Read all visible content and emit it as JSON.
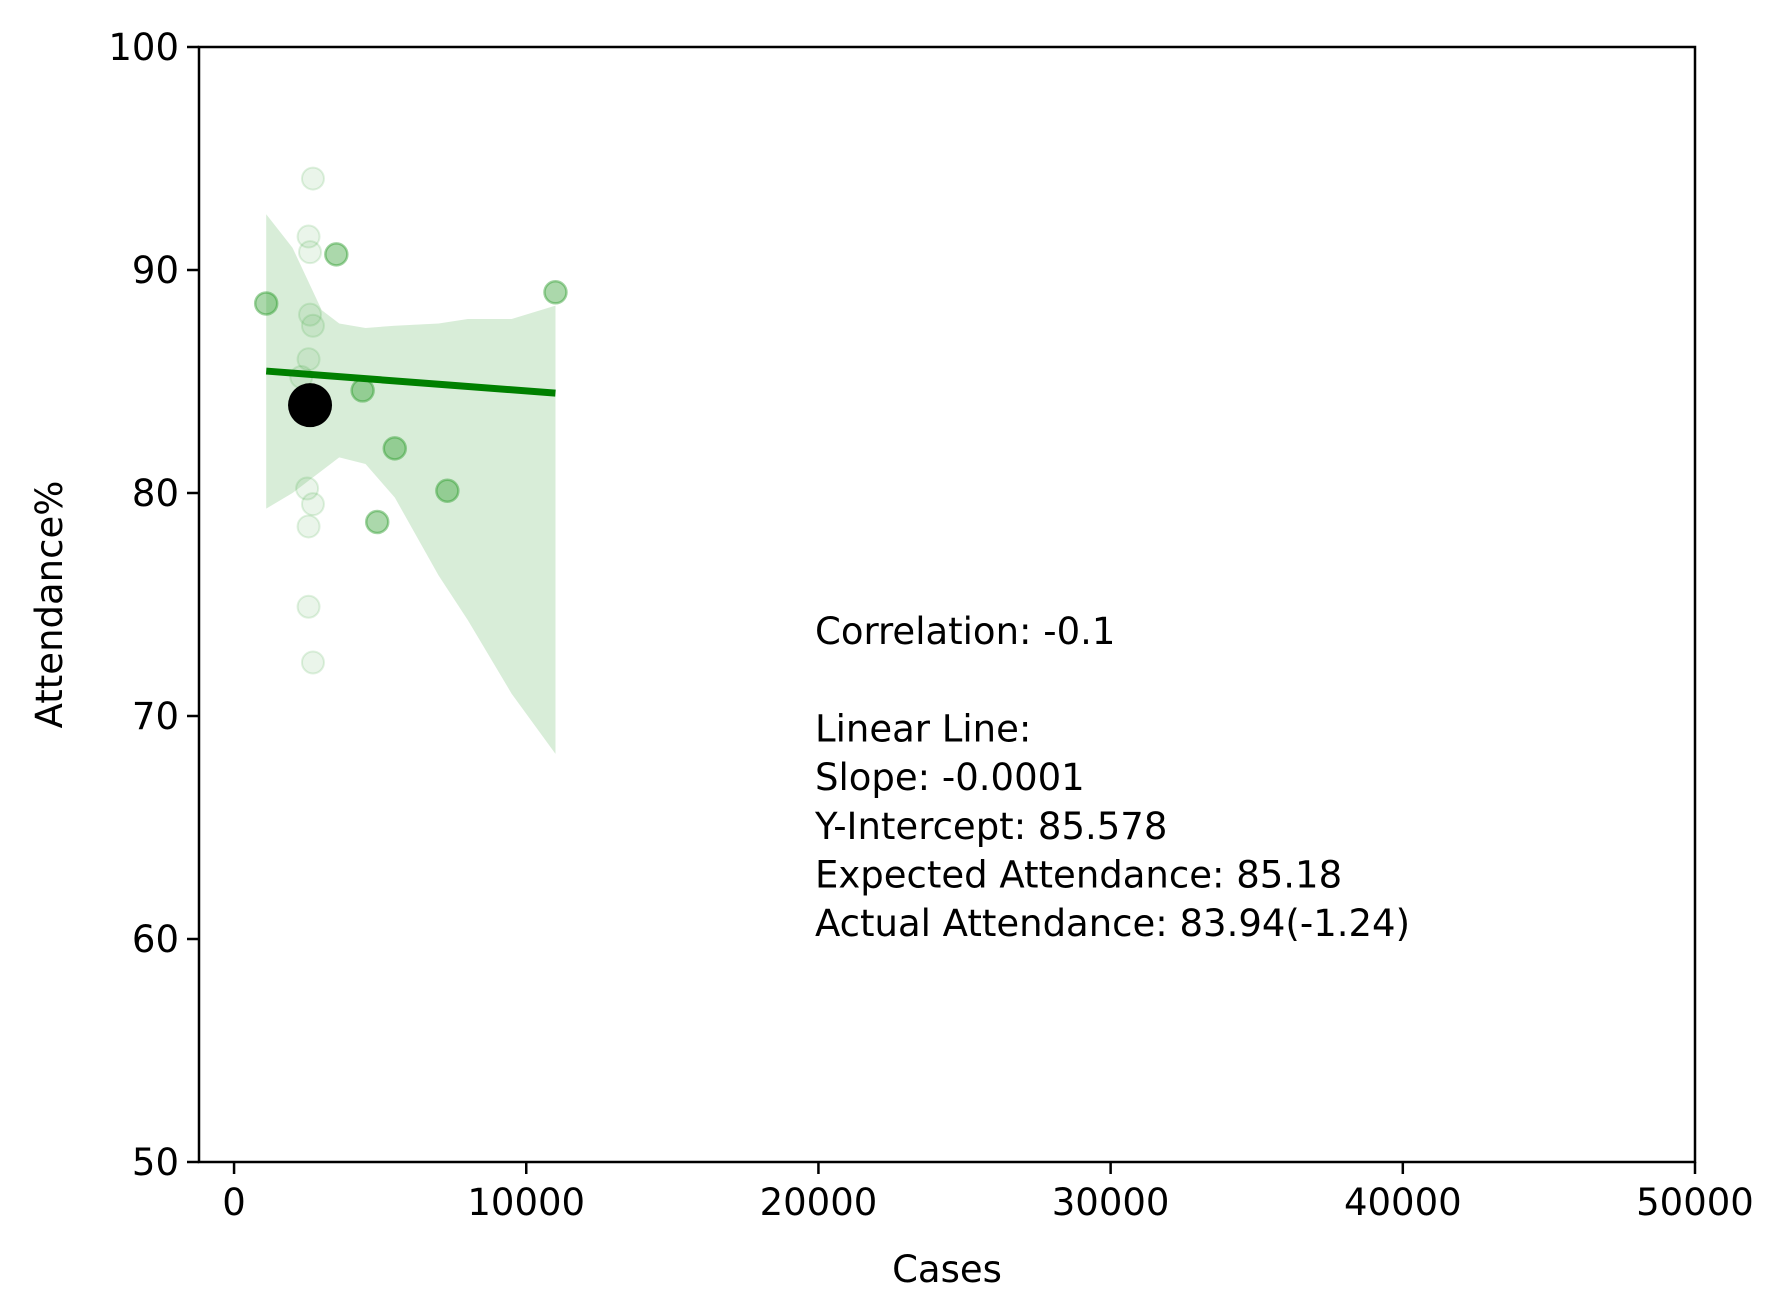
{
  "chart_data": {
    "type": "scatter",
    "title": "",
    "xlabel": "Cases",
    "ylabel": "Attendance%",
    "xlim": [
      -1200,
      50000
    ],
    "ylim": [
      50,
      100
    ],
    "xticks": [
      0,
      10000,
      20000,
      30000,
      40000,
      50000
    ],
    "yticks": [
      50,
      60,
      70,
      80,
      90,
      100
    ],
    "xtick_labels": [
      "0",
      "10000",
      "20000",
      "30000",
      "40000",
      "50000"
    ],
    "ytick_labels": [
      "50",
      "60",
      "70",
      "80",
      "90",
      "100"
    ],
    "grid": false,
    "colors": {
      "points": "#2e9e2e",
      "fit_line": "#008000",
      "confidence_band": "#c8e6c8",
      "highlight": "#000000"
    },
    "faint_points": [
      {
        "x": 2700,
        "y": 94.1
      },
      {
        "x": 2550,
        "y": 91.5
      },
      {
        "x": 2600,
        "y": 90.8
      },
      {
        "x": 2600,
        "y": 88.0
      },
      {
        "x": 2700,
        "y": 87.5
      },
      {
        "x": 2550,
        "y": 86.0
      },
      {
        "x": 2300,
        "y": 85.2
      },
      {
        "x": 2500,
        "y": 80.2
      },
      {
        "x": 2700,
        "y": 79.5
      },
      {
        "x": 2550,
        "y": 78.5
      },
      {
        "x": 2550,
        "y": 74.9
      },
      {
        "x": 2700,
        "y": 72.4
      }
    ],
    "points": [
      {
        "x": 1100,
        "y": 88.5
      },
      {
        "x": 3500,
        "y": 90.7
      },
      {
        "x": 4400,
        "y": 84.6
      },
      {
        "x": 5500,
        "y": 82.0
      },
      {
        "x": 4900,
        "y": 78.7
      },
      {
        "x": 7300,
        "y": 80.1
      },
      {
        "x": 11000,
        "y": 89.0
      }
    ],
    "highlight_point": {
      "x": 2600,
      "y": 83.94
    },
    "fit_line": {
      "slope": -0.0001,
      "intercept": 85.578,
      "x_range": [
        1100,
        11000
      ]
    },
    "confidence_band": [
      {
        "x": 1100,
        "lo": 79.3,
        "hi": 92.5
      },
      {
        "x": 2000,
        "lo": 80.0,
        "hi": 91.0
      },
      {
        "x": 3000,
        "lo": 81.0,
        "hi": 88.2
      },
      {
        "x": 3600,
        "lo": 81.6,
        "hi": 87.6
      },
      {
        "x": 4500,
        "lo": 81.3,
        "hi": 87.4
      },
      {
        "x": 5500,
        "lo": 79.8,
        "hi": 87.5
      },
      {
        "x": 7000,
        "lo": 76.3,
        "hi": 87.6
      },
      {
        "x": 8000,
        "lo": 74.3,
        "hi": 87.8
      },
      {
        "x": 9500,
        "lo": 71.0,
        "hi": 87.8
      },
      {
        "x": 11000,
        "lo": 68.3,
        "hi": 88.4
      }
    ],
    "annotation_lines": [
      "Correlation: -0.1",
      "",
      "Linear Line:",
      "Slope: -0.0001",
      "Y-Intercept: 85.578",
      "Expected Attendance: 85.18",
      "Actual Attendance: 83.94(-1.24)"
    ]
  }
}
